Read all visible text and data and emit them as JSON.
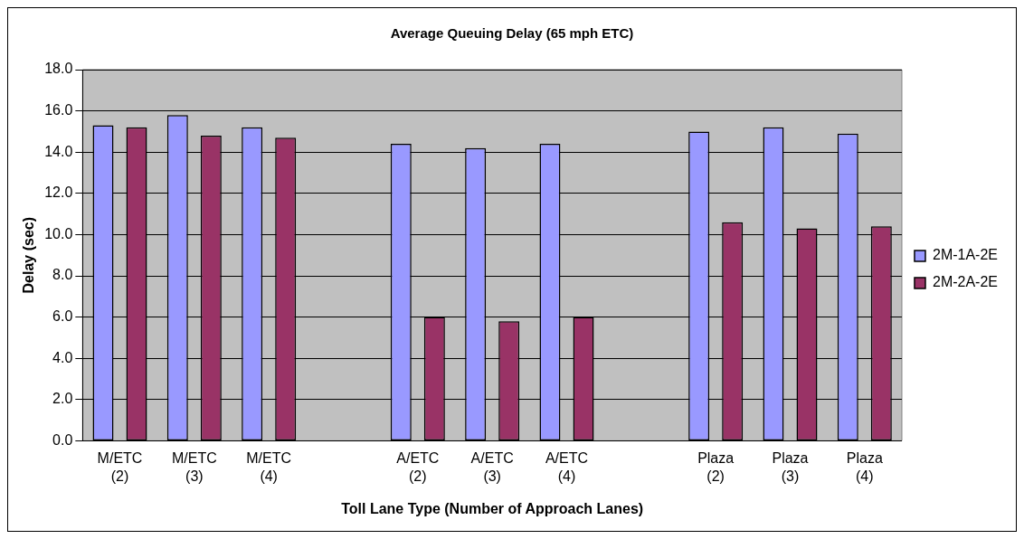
{
  "chart_data": {
    "type": "bar",
    "title": "Average Queuing Delay (65 mph ETC)",
    "xlabel": "Toll Lane Type (Number of Approach Lanes)",
    "ylabel": "Delay (sec)",
    "categories": [
      "M/ETC (2)",
      "M/ETC (3)",
      "M/ETC (4)",
      null,
      "A/ETC (2)",
      "A/ETC (3)",
      "A/ETC (4)",
      null,
      "Plaza (2)",
      "Plaza (3)",
      "Plaza (4)"
    ],
    "series": [
      {
        "name": "2M-1A-2E",
        "color": "#9999ff",
        "values": [
          15.3,
          15.8,
          15.2,
          null,
          14.4,
          14.2,
          14.4,
          null,
          15.0,
          15.2,
          14.9
        ]
      },
      {
        "name": "2M-2A-2E",
        "color": "#993366",
        "values": [
          15.2,
          14.8,
          14.7,
          null,
          6.0,
          5.8,
          6.0,
          null,
          10.6,
          10.3,
          10.4
        ]
      }
    ],
    "ylim": [
      0,
      18
    ],
    "yticks": [
      {
        "value": 0,
        "label": "0.0"
      },
      {
        "value": 2,
        "label": "2.0"
      },
      {
        "value": 4,
        "label": "4.0"
      },
      {
        "value": 6,
        "label": "6.0"
      },
      {
        "value": 8,
        "label": "8.0"
      },
      {
        "value": 10,
        "label": "10.0"
      },
      {
        "value": 12,
        "label": "12.0"
      },
      {
        "value": 14,
        "label": "14.0"
      },
      {
        "value": 16,
        "label": "16.0"
      },
      {
        "value": 18,
        "label": "18.0"
      }
    ],
    "grid": "y",
    "legend": "right"
  }
}
